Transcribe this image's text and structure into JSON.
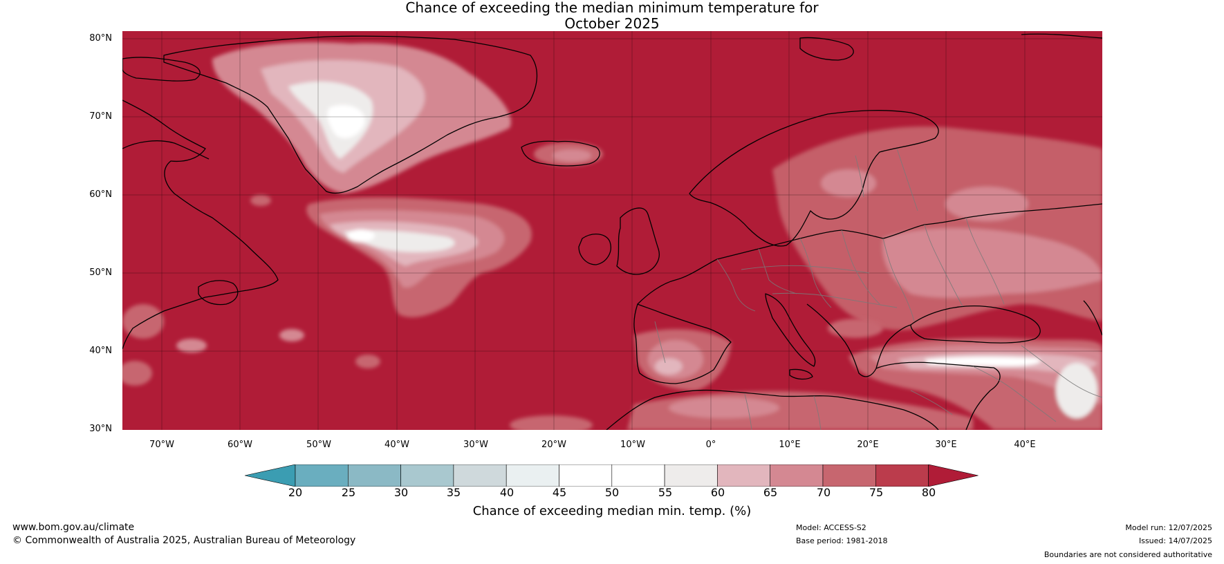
{
  "title_line1": "Chance of exceeding the median minimum temperature for",
  "title_line2": "October 2025",
  "latitude_labels": [
    "80°N",
    "70°N",
    "60°N",
    "50°N",
    "40°N",
    "30°N"
  ],
  "longitude_labels": [
    "70°W",
    "60°W",
    "50°W",
    "40°W",
    "30°W",
    "20°W",
    "10°W",
    "0°",
    "10°E",
    "20°E",
    "30°E",
    "40°E"
  ],
  "colorbar": {
    "ticks": [
      "20",
      "25",
      "30",
      "35",
      "40",
      "45",
      "50",
      "55",
      "60",
      "65",
      "70",
      "75",
      "80"
    ],
    "colors": [
      "#3b9db2",
      "#6aaebf",
      "#8bb9c5",
      "#a9c8cf",
      "#cfd9dc",
      "#eaf0f1",
      "#ffffff",
      "#ffffff",
      "#eeeceb",
      "#e2b6bd",
      "#d48892",
      "#c7666f",
      "#bb3c4c",
      "#b01c37"
    ],
    "label": "Chance of exceeding median min. temp. (%)"
  },
  "footer": {
    "website": "www.bom.gov.au/climate",
    "copyright": "© Commonwealth of Australia 2025, Australian Bureau of Meteorology",
    "model": "Model: ACCESS-S2",
    "base_period": "Base period: 1981-2018",
    "model_run": "Model run: 12/07/2025",
    "issued": "Issued: 14/07/2025",
    "disclaimer": "Boundaries are not considered authoritative"
  },
  "map_colors": {
    "background": "#b01c37",
    "level_75": "#bb3c4c",
    "level_70": "#c7666f",
    "level_65": "#d48892",
    "level_60": "#e2b6bd",
    "level_55": "#eeeceb",
    "level_50": "#ffffff"
  }
}
